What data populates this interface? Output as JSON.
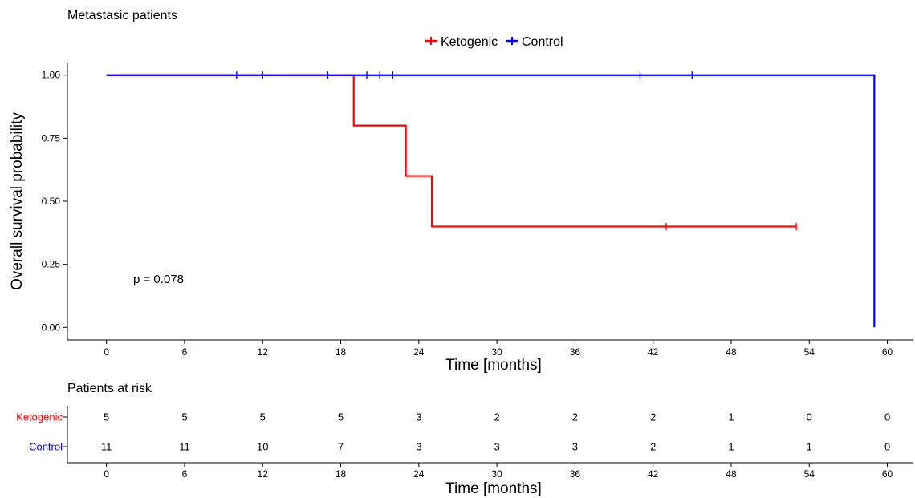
{
  "chart_data": [
    {
      "type": "line",
      "subtype": "kaplan-meier-step",
      "title": "Metastasic patients",
      "xlabel": "Time [months]",
      "ylabel": "Overall survival probability",
      "xlim": [
        -3,
        62
      ],
      "ylim": [
        -0.05,
        1.05
      ],
      "x_ticks": [
        0,
        6,
        12,
        18,
        24,
        30,
        36,
        42,
        48,
        54,
        60
      ],
      "y_ticks": [
        0.0,
        0.25,
        0.5,
        0.75,
        1.0
      ],
      "y_tick_labels": [
        "0.00",
        "0.25",
        "0.50",
        "0.75",
        "1.00"
      ],
      "grid": false,
      "legend": {
        "placement": "top-center",
        "entries": [
          "Ketogenic",
          "Control"
        ]
      },
      "annotation": "p = 0.078",
      "series": [
        {
          "name": "Ketogenic",
          "color": "#ff0000",
          "steps": [
            [
              0,
              1.0
            ],
            [
              19,
              0.8
            ],
            [
              23,
              0.6
            ],
            [
              25,
              0.4
            ]
          ],
          "end_x": 53,
          "censored": [
            [
              43,
              0.4
            ],
            [
              53,
              0.4
            ]
          ]
        },
        {
          "name": "Control",
          "color": "#0000ff",
          "steps": [
            [
              0,
              1.0
            ],
            [
              59,
              0.0
            ]
          ],
          "end_x": 59,
          "censored": [
            [
              10,
              1.0
            ],
            [
              12,
              1.0
            ],
            [
              17,
              1.0
            ],
            [
              20,
              1.0
            ],
            [
              21,
              1.0
            ],
            [
              22,
              1.0
            ],
            [
              41,
              1.0
            ],
            [
              45,
              1.0
            ]
          ]
        }
      ]
    },
    {
      "type": "table",
      "title": "Patients at risk",
      "xlabel": "Time [months]",
      "x_ticks": [
        0,
        6,
        12,
        18,
        24,
        30,
        36,
        42,
        48,
        54,
        60
      ],
      "rows": [
        {
          "name": "Ketogenic",
          "color": "#ff0000",
          "values": [
            5,
            5,
            5,
            5,
            3,
            2,
            2,
            2,
            1,
            0,
            0
          ]
        },
        {
          "name": "Control",
          "color": "#0000ff",
          "values": [
            11,
            11,
            10,
            7,
            3,
            3,
            3,
            2,
            1,
            1,
            0
          ]
        }
      ]
    }
  ]
}
